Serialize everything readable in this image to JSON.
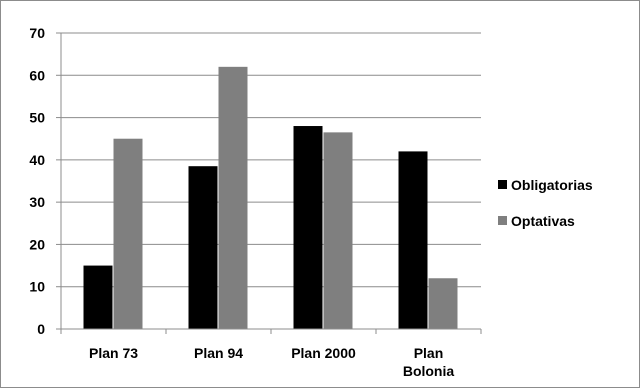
{
  "chart_data": {
    "type": "bar",
    "title": "",
    "xlabel": "",
    "ylabel": "",
    "categories": [
      [
        "Plan 73"
      ],
      [
        "Plan 94"
      ],
      [
        "Plan 2000"
      ],
      [
        "Plan",
        "Bolonia"
      ]
    ],
    "series": [
      {
        "name": "Obligatorias",
        "color": "#000000",
        "values": [
          15,
          38.5,
          48,
          42
        ]
      },
      {
        "name": "Optativas",
        "color": "#7f7f7f",
        "values": [
          45,
          62,
          46.5,
          12
        ]
      }
    ],
    "ylim": [
      0,
      70
    ],
    "yticks": [
      0,
      10,
      20,
      30,
      40,
      50,
      60,
      70
    ],
    "grid": true,
    "legend": "right"
  }
}
